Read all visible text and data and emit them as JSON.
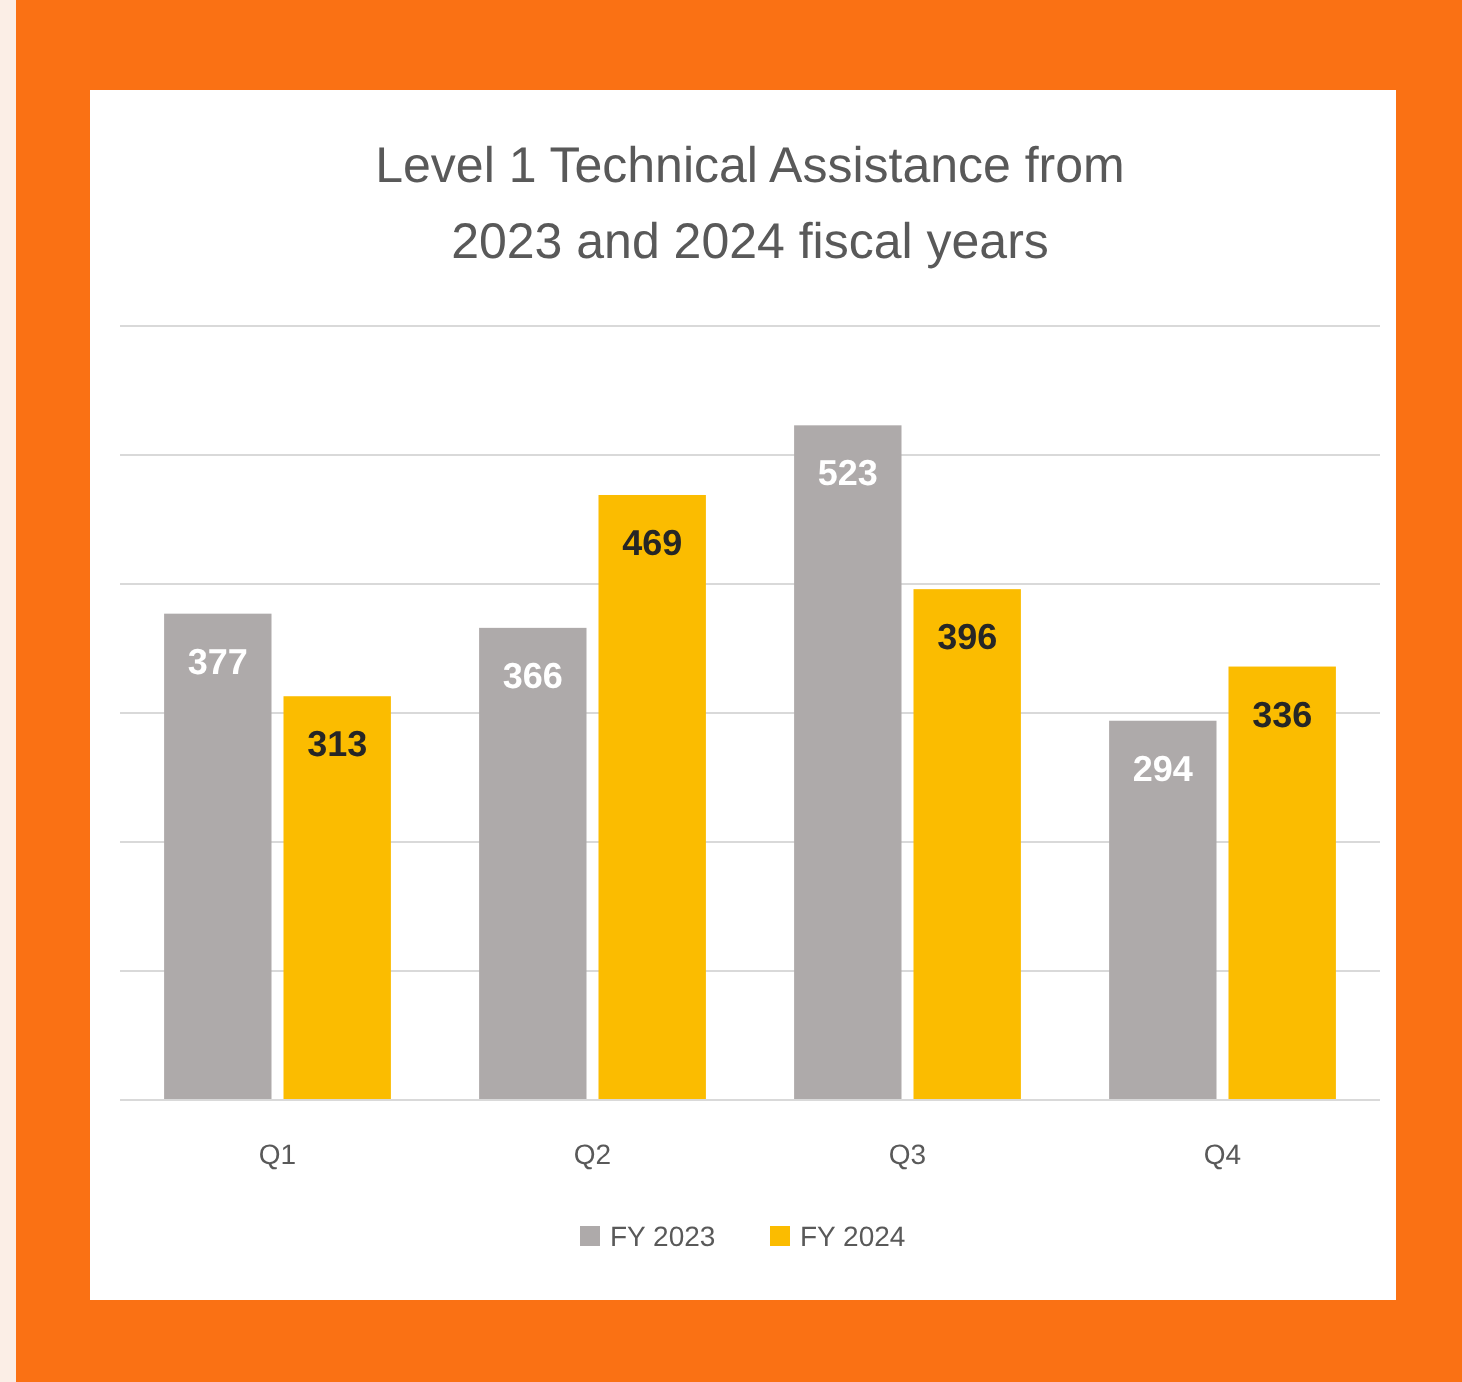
{
  "chart_data": {
    "type": "bar",
    "title": "Level 1 Technical Assistance from 2023 and 2024 fiscal years",
    "categories": [
      "Q1",
      "Q2",
      "Q3",
      "Q4"
    ],
    "series": [
      {
        "name": "FY 2023",
        "color": "#aeaaaa",
        "values": [
          377,
          366,
          523,
          294
        ]
      },
      {
        "name": "FY 2024",
        "color": "#fbbc00",
        "values": [
          313,
          469,
          396,
          336
        ]
      }
    ],
    "ylim": [
      0,
      600
    ],
    "yticks": [
      {
        "value": 0,
        "label": null
      },
      {
        "value": 100,
        "label": null
      },
      {
        "value": 200,
        "label": null
      },
      {
        "value": 300,
        "label": null
      },
      {
        "value": 400,
        "label": null
      },
      {
        "value": 500,
        "label": null
      },
      {
        "value": 600,
        "label": null
      }
    ],
    "grid": "y",
    "data_labels": true,
    "legend": "bottom",
    "tick_labels": "x"
  }
}
